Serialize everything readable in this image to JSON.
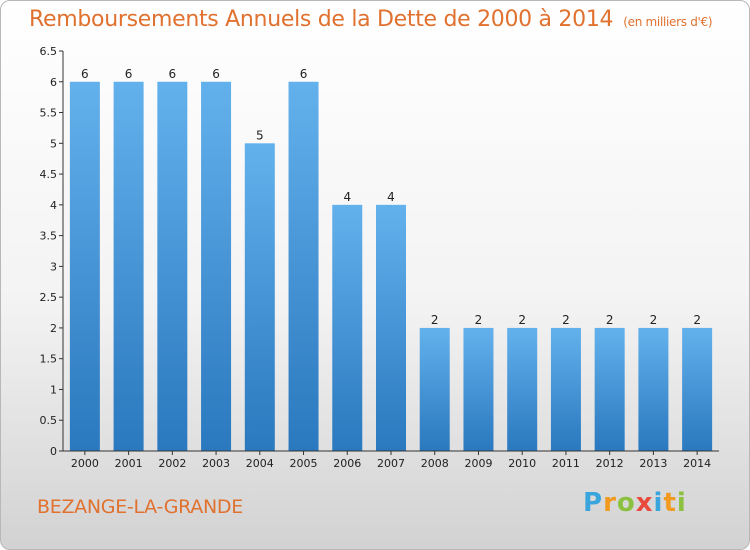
{
  "header": {
    "title": "Remboursements Annuels de la Dette de 2000 à 2014",
    "unit": "(en milliers d'€)"
  },
  "footer": {
    "city": "BEZANGE-LA-GRANDE",
    "logo_text": "Proxiti"
  },
  "colors": {
    "title": "#e0712f",
    "bar_top": "#63b1ec",
    "bar_bottom": "#2a78be",
    "axis": "#333333"
  },
  "chart_data": {
    "type": "bar",
    "categories": [
      "2000",
      "2001",
      "2002",
      "2003",
      "2004",
      "2005",
      "2006",
      "2007",
      "2008",
      "2009",
      "2010",
      "2011",
      "2012",
      "2013",
      "2014"
    ],
    "values": [
      6,
      6,
      6,
      6,
      5,
      6,
      4,
      4,
      2,
      2,
      2,
      2,
      2,
      2,
      2
    ],
    "data_labels": [
      "6",
      "6",
      "6",
      "6",
      "5",
      "6",
      "4",
      "4",
      "2",
      "2",
      "2",
      "2",
      "2",
      "2",
      "2"
    ],
    "y_ticks": [
      "0",
      "0.5",
      "1",
      "1.5",
      "2",
      "2.5",
      "3",
      "3.5",
      "4",
      "4.5",
      "5",
      "5.5",
      "6",
      "6.5"
    ],
    "ylim": [
      0,
      6.5
    ],
    "grid": false,
    "legend": "none"
  }
}
